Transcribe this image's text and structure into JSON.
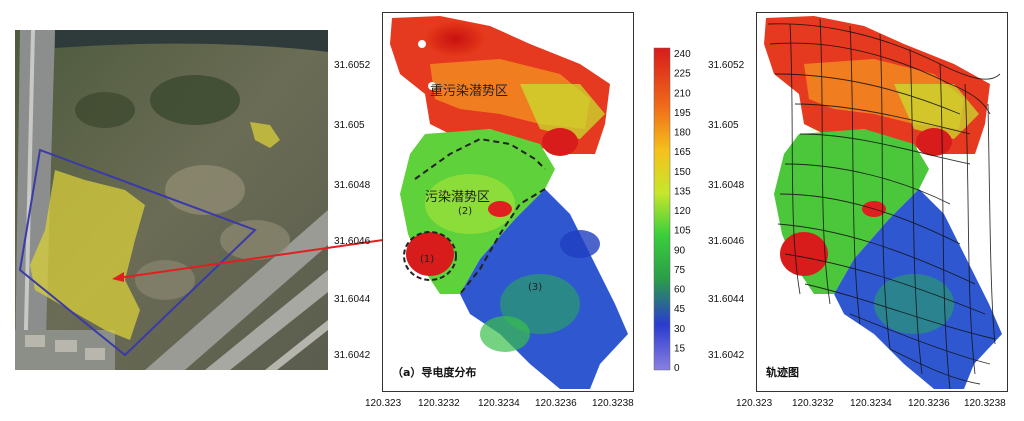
{
  "satellite": {
    "survey_area_color": "#3a3aa8",
    "polluted_zone_color": "#d8cf3a"
  },
  "map_a": {
    "caption": "（a）导电度分布",
    "y_ticks": [
      "31.6052",
      "31.605",
      "31.6048",
      "31.6046",
      "31.6044",
      "31.6042"
    ],
    "x_ticks": [
      "120.323",
      "120.3232",
      "120.3234",
      "120.3236",
      "120.3238"
    ],
    "zones": [
      {
        "label": "重污染潜势区",
        "marker": ""
      },
      {
        "label": "污染潜势区",
        "marker": "(2)"
      },
      {
        "label": "",
        "marker": "(1)"
      },
      {
        "label": "",
        "marker": "(3)"
      }
    ]
  },
  "colorbar": {
    "ticks": [
      "240",
      "225",
      "210",
      "195",
      "180",
      "165",
      "150",
      "135",
      "120",
      "105",
      "90",
      "75",
      "60",
      "45",
      "30",
      "15",
      "0"
    ],
    "colors": [
      "#d81b1b",
      "#f06a1a",
      "#f5c21c",
      "#c7e62c",
      "#3bcf3b",
      "#2a9c4a",
      "#2a3bd0",
      "#6a5ad8"
    ]
  },
  "map_b": {
    "caption": "轨迹图",
    "y_ticks": [
      "31.6052",
      "31.605",
      "31.6048",
      "31.6046",
      "31.6044",
      "31.6042"
    ],
    "x_ticks": [
      "120.323",
      "120.3232",
      "120.3234",
      "120.3236",
      "120.3238"
    ]
  }
}
